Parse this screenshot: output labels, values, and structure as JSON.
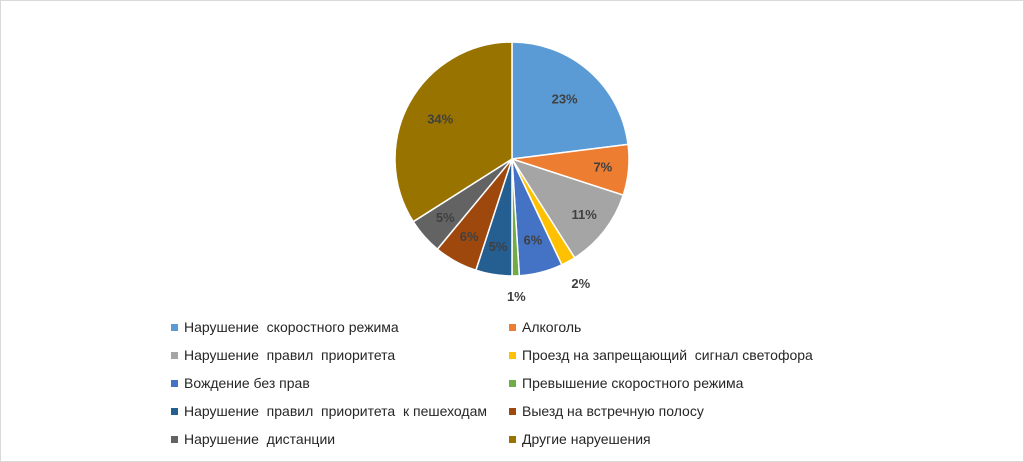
{
  "chart_data": {
    "type": "pie",
    "title": "",
    "categories": [
      "Нарушение  скоростного режима",
      "Алкоголь",
      "Нарушение  правил  приоритета",
      "Проезд на запрещающий  сигнал светофора",
      "Вождение без прав",
      "Превышение скоростного режима",
      "Нарушение  правил  приоритета  к пешеходам",
      "Выезд на встречную полосу",
      "Нарушение  дистанции",
      "Другие наруешения"
    ],
    "values": [
      23,
      7,
      11,
      2,
      6,
      1,
      5,
      6,
      5,
      34
    ],
    "labels": [
      "23%",
      "7%",
      "11%",
      "2%",
      "6%",
      "1%",
      "5%",
      "6%",
      "5%",
      "34%"
    ],
    "colors": [
      "#5b9bd5",
      "#ed7d31",
      "#a5a5a5",
      "#ffc000",
      "#4472c4",
      "#70ad47",
      "#255e91",
      "#9e480e",
      "#636363",
      "#997300"
    ],
    "legend_position": "bottom"
  }
}
